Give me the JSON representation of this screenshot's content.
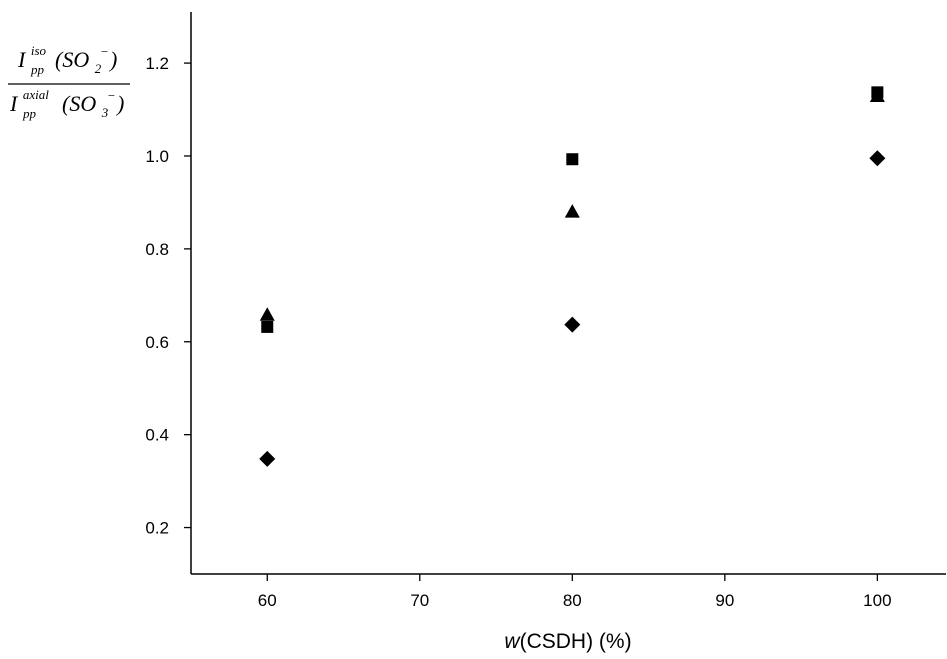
{
  "chart_data": {
    "type": "scatter",
    "title": "",
    "xlabel": {
      "italic": "w",
      "rest": "(CSDH) (%)"
    },
    "ylabel": {
      "numerator": {
        "base": "I",
        "sup": "iso",
        "sub": "pp",
        "arg_open": "(SO",
        "arg_sub": "2",
        "arg_sup": "−",
        "arg_close": ")"
      },
      "denominator": {
        "base": "I",
        "sup": "axial",
        "sub": "pp",
        "arg_open": "(SO",
        "arg_sub": "3",
        "arg_sup": "−",
        "arg_close": ")"
      }
    },
    "xlim": [
      55,
      104.5
    ],
    "ylim": [
      0.1,
      1.31
    ],
    "x_ticks": [
      60,
      70,
      80,
      90,
      100
    ],
    "y_ticks": [
      0.2,
      0.4,
      0.6,
      0.8,
      1.0,
      1.2
    ],
    "x_tick_labels": [
      "60",
      "70",
      "80",
      "90",
      "100"
    ],
    "y_tick_labels": [
      "0.2",
      "0.4",
      "0.6",
      "0.8",
      "1.0",
      "1.2"
    ],
    "grid": false,
    "series": [
      {
        "marker": "square",
        "x": [
          60,
          80,
          100
        ],
        "y": [
          0.632,
          0.993,
          1.137
        ]
      },
      {
        "marker": "triangle",
        "x": [
          60,
          80,
          100
        ],
        "y": [
          0.657,
          0.879,
          1.128
        ]
      },
      {
        "marker": "diamond",
        "x": [
          60,
          80,
          100
        ],
        "y": [
          0.348,
          0.637,
          0.995
        ]
      }
    ]
  }
}
